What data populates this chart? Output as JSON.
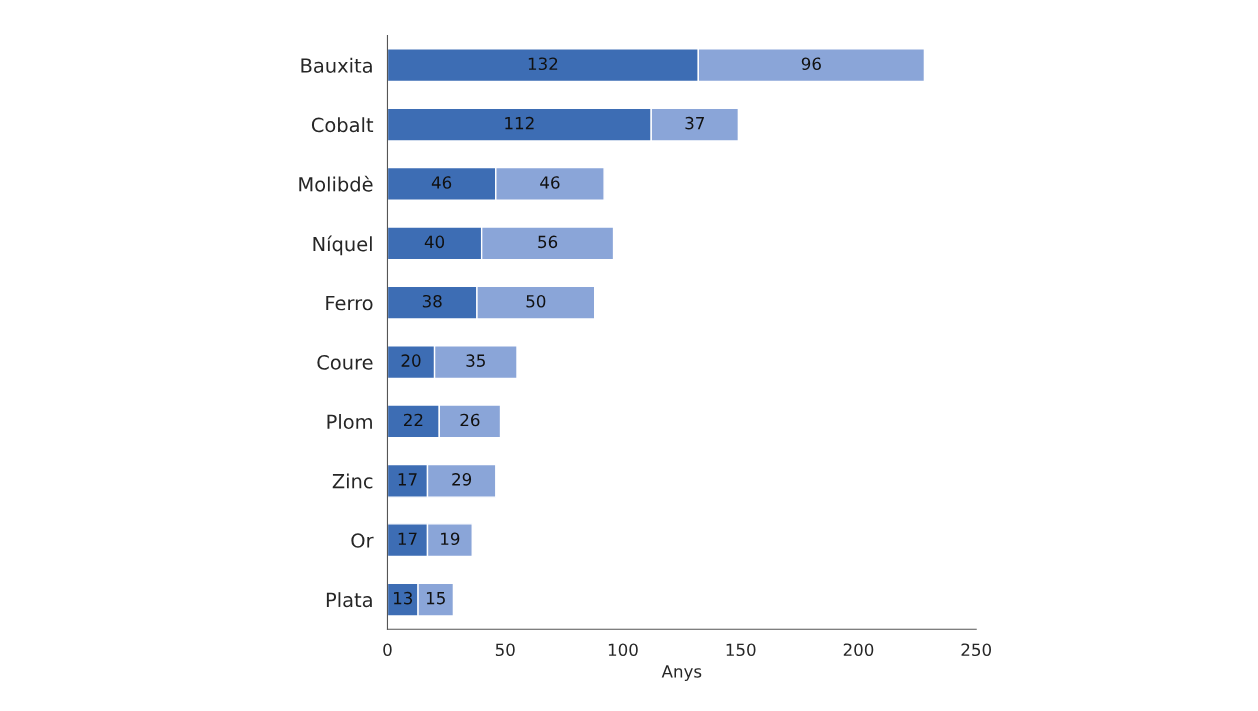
{
  "chart_data": {
    "type": "bar",
    "orientation": "horizontal",
    "stacked": true,
    "xlabel": "Anys",
    "categories": [
      "Bauxita",
      "Cobalt",
      "Molibdè",
      "Níquel",
      "Ferro",
      "Coure",
      "Plom",
      "Zinc",
      "Or",
      "Plata"
    ],
    "series": [
      {
        "color": "#3d6db4",
        "values": [
          132,
          112,
          46,
          40,
          38,
          20,
          22,
          17,
          17,
          13
        ]
      },
      {
        "color": "#8aa5d8",
        "values": [
          96,
          37,
          46,
          56,
          50,
          35,
          26,
          29,
          19,
          15
        ]
      }
    ],
    "xlim": [
      0,
      250
    ],
    "xticks": [
      0,
      50,
      100,
      150,
      200,
      250
    ],
    "grid": false,
    "data_labels": true
  }
}
